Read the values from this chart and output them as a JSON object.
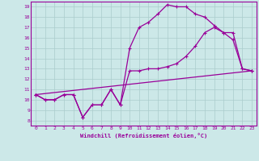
{
  "background_color": "#cce8e8",
  "grid_color": "#aacccc",
  "line_color": "#990099",
  "xlabel": "Windchill (Refroidissement éolien,°C)",
  "xlim": [
    -0.5,
    23.5
  ],
  "ylim": [
    7.5,
    19.5
  ],
  "xticks": [
    0,
    1,
    2,
    3,
    4,
    5,
    6,
    7,
    8,
    9,
    10,
    11,
    12,
    13,
    14,
    15,
    16,
    17,
    18,
    19,
    20,
    21,
    22,
    23
  ],
  "yticks": [
    8,
    9,
    10,
    11,
    12,
    13,
    14,
    15,
    16,
    17,
    18,
    19
  ],
  "line1_x": [
    0,
    1,
    2,
    3,
    4,
    5,
    6,
    7,
    8,
    9,
    10,
    11,
    12,
    13,
    14,
    15,
    16,
    17,
    18,
    19,
    20,
    21,
    22,
    23
  ],
  "line1_y": [
    10.5,
    10.0,
    10.0,
    10.5,
    10.5,
    8.3,
    9.5,
    9.5,
    11.0,
    9.5,
    15.0,
    17.0,
    17.5,
    18.3,
    19.2,
    19.0,
    19.0,
    18.3,
    18.0,
    17.2,
    16.5,
    15.8,
    13.0,
    12.8
  ],
  "line2_x": [
    0,
    1,
    2,
    3,
    4,
    5,
    6,
    7,
    8,
    9,
    10,
    11,
    12,
    13,
    14,
    15,
    16,
    17,
    18,
    19,
    20,
    21,
    22,
    23
  ],
  "line2_y": [
    10.5,
    10.0,
    10.0,
    10.5,
    10.5,
    8.3,
    9.5,
    9.5,
    11.0,
    9.5,
    12.8,
    12.8,
    13.0,
    13.0,
    13.2,
    13.5,
    14.2,
    15.2,
    16.5,
    17.0,
    16.5,
    16.5,
    13.0,
    12.8
  ],
  "line3_x": [
    0,
    23
  ],
  "line3_y": [
    10.5,
    12.8
  ]
}
